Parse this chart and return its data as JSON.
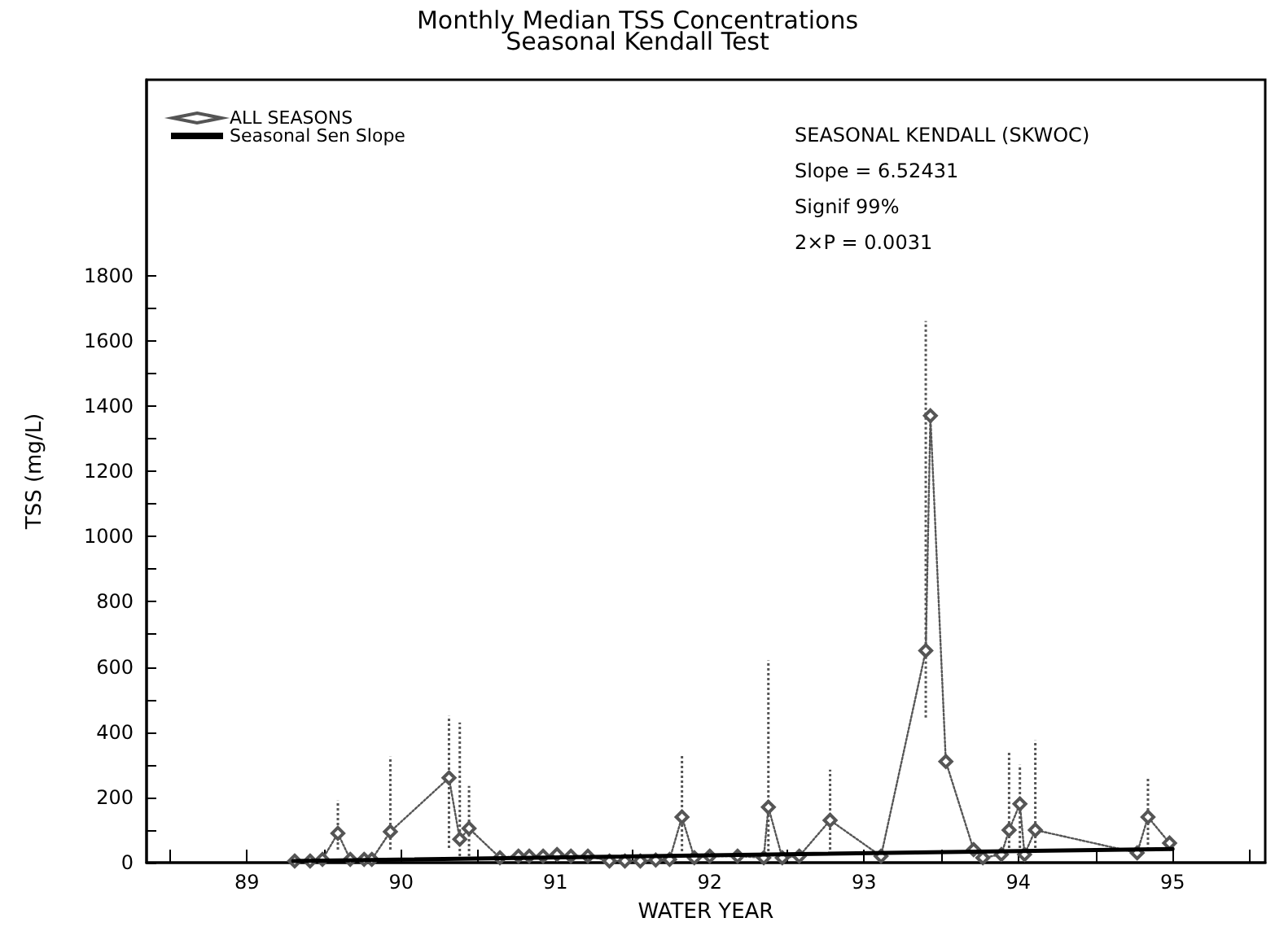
{
  "chart_data": {
    "type": "line",
    "title": "Monthly Median TSS Concentrations",
    "subtitle": "Seasonal Kendall Test",
    "xlabel": "WATER YEAR",
    "ylabel": "TSS (mg/L)",
    "annotations": [
      "SEASONAL KENDALL (SKWOC)",
      "Slope = 6.52431",
      "Signif 99%",
      "2×P = 0.0031"
    ],
    "xlim": [
      88.35,
      95.6
    ],
    "xticks": [
      {
        "value": 88.5,
        "label": null
      },
      89,
      {
        "value": 89.5,
        "label": null
      },
      90,
      {
        "value": 90.5,
        "label": null
      },
      91,
      {
        "value": 91.5,
        "label": null
      },
      92,
      {
        "value": 92.5,
        "label": null
      },
      93,
      {
        "value": 93.5,
        "label": null
      },
      94,
      {
        "value": 94.5,
        "label": null
      },
      95,
      {
        "value": 95.5,
        "label": null
      }
    ],
    "ylim": [
      0,
      2400
    ],
    "yticks": [
      0,
      {
        "value": 100,
        "label": null
      },
      200,
      {
        "value": 300,
        "label": null
      },
      400,
      {
        "value": 500,
        "label": null
      },
      600,
      {
        "value": 700,
        "label": null
      },
      800,
      {
        "value": 900,
        "label": null
      },
      1000,
      {
        "value": 1100,
        "label": null
      },
      1200,
      {
        "value": 1300,
        "label": null
      },
      1400,
      {
        "value": 1500,
        "label": null
      },
      1600,
      {
        "value": 1700,
        "label": null
      },
      1800
    ],
    "grid": false,
    "legend": "top left",
    "series": [
      {
        "name": "ALL SEASONS",
        "color": "#555555",
        "marker": "diamond",
        "line_style": "dotted",
        "x": [
          89.31,
          89.41,
          89.49,
          89.59,
          89.67,
          89.76,
          89.81,
          89.93,
          90.31,
          90.38,
          90.44,
          90.64,
          90.76,
          90.83,
          90.92,
          91.01,
          91.1,
          91.21,
          91.35,
          91.45,
          91.55,
          91.65,
          91.74,
          91.82,
          91.9,
          92.0,
          92.18,
          92.35,
          92.38,
          92.47,
          92.58,
          92.78,
          93.11,
          93.4,
          93.43,
          93.53,
          93.71,
          93.77,
          93.89,
          93.94,
          94.01,
          94.04,
          94.11,
          94.77,
          94.84,
          94.98
        ],
        "values": [
          5,
          5,
          10,
          90,
          10,
          10,
          10,
          95,
          260,
          72,
          105,
          15,
          20,
          20,
          20,
          25,
          20,
          20,
          5,
          5,
          5,
          8,
          10,
          140,
          15,
          20,
          20,
          15,
          170,
          15,
          20,
          130,
          20,
          650,
          1370,
          310,
          40,
          15,
          25,
          100,
          180,
          25,
          100,
          30,
          140,
          60
        ],
        "errors": [
          null,
          null,
          null,
          [
            40,
            190
          ],
          null,
          null,
          null,
          [
            40,
            325
          ],
          [
            45,
            450
          ],
          [
            20,
            430
          ],
          [
            20,
            235
          ],
          null,
          null,
          null,
          null,
          null,
          null,
          null,
          null,
          null,
          null,
          null,
          null,
          [
            20,
            330
          ],
          null,
          null,
          null,
          null,
          [
            20,
            620
          ],
          null,
          null,
          [
            40,
            285
          ],
          null,
          [
            445,
            1660
          ],
          null,
          null,
          null,
          null,
          null,
          [
            30,
            340
          ],
          [
            30,
            300
          ],
          null,
          [
            30,
            375
          ],
          null,
          [
            40,
            260
          ],
          null
        ]
      },
      {
        "name": "Seasonal Sen Slope",
        "color": "#000000",
        "marker": "none",
        "line_style": "solid",
        "x": [
          89.3,
          95.0
        ],
        "values": [
          5,
          42
        ]
      }
    ]
  }
}
